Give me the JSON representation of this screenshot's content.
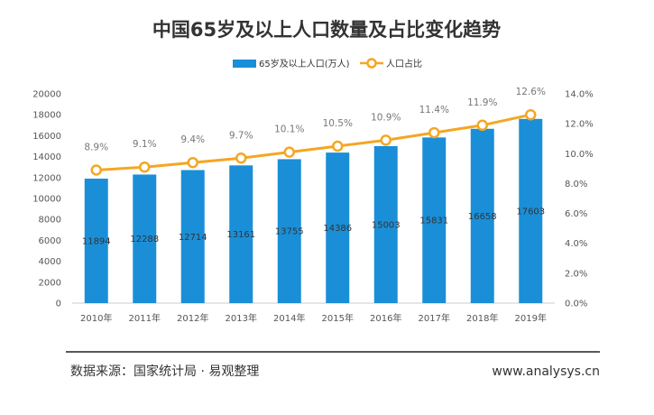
{
  "chart_data": {
    "type": "bar",
    "title": "中国65岁及以上人口数量及占比变化趋势",
    "categories": [
      "2010年",
      "2011年",
      "2012年",
      "2013年",
      "2014年",
      "2015年",
      "2016年",
      "2017年",
      "2018年",
      "2019年"
    ],
    "series": [
      {
        "name": "65岁及以上人口(万人)",
        "type": "bar",
        "axis": "left",
        "color": "#1a8fd8",
        "values": [
          11894,
          12288,
          12714,
          13161,
          13755,
          14386,
          15003,
          15831,
          16658,
          17603
        ],
        "labels": [
          "11894",
          "12288",
          "12714",
          "13161",
          "13755",
          "14386",
          "15003",
          "15831",
          "16658",
          "17603"
        ]
      },
      {
        "name": "人口占比",
        "type": "line",
        "axis": "right",
        "color": "#f5a623",
        "values": [
          8.9,
          9.1,
          9.4,
          9.7,
          10.1,
          10.5,
          10.9,
          11.4,
          11.9,
          12.6
        ],
        "labels": [
          "8.9%",
          "9.1%",
          "9.4%",
          "9.7%",
          "10.1%",
          "10.5%",
          "10.9%",
          "11.4%",
          "11.9%",
          "12.6%"
        ]
      }
    ],
    "y_left": {
      "ylim": [
        0,
        20000
      ],
      "ticks": [
        0,
        2000,
        4000,
        6000,
        8000,
        10000,
        12000,
        14000,
        16000,
        18000,
        20000
      ],
      "tick_labels": [
        "0",
        "2000",
        "4000",
        "6000",
        "8000",
        "10000",
        "12000",
        "14000",
        "16000",
        "18000",
        "20000"
      ]
    },
    "y_right": {
      "ylim": [
        0,
        14
      ],
      "ticks": [
        0,
        2,
        4,
        6,
        8,
        10,
        12,
        14
      ],
      "tick_labels": [
        "0.0%",
        "2.0%",
        "4.0%",
        "6.0%",
        "8.0%",
        "10.0%",
        "12.0%",
        "14.0%"
      ]
    },
    "grid": false,
    "legend_position": "top"
  },
  "footer": {
    "source": "数据来源：国家统计局 · 易观整理",
    "website": "www.analysys.cn"
  },
  "colors": {
    "bar": "#1a8fd8",
    "line": "#f5a623",
    "text": "#333333",
    "axis_text": "#555555",
    "label_gray": "#777777",
    "footer_rule": "#222222"
  }
}
